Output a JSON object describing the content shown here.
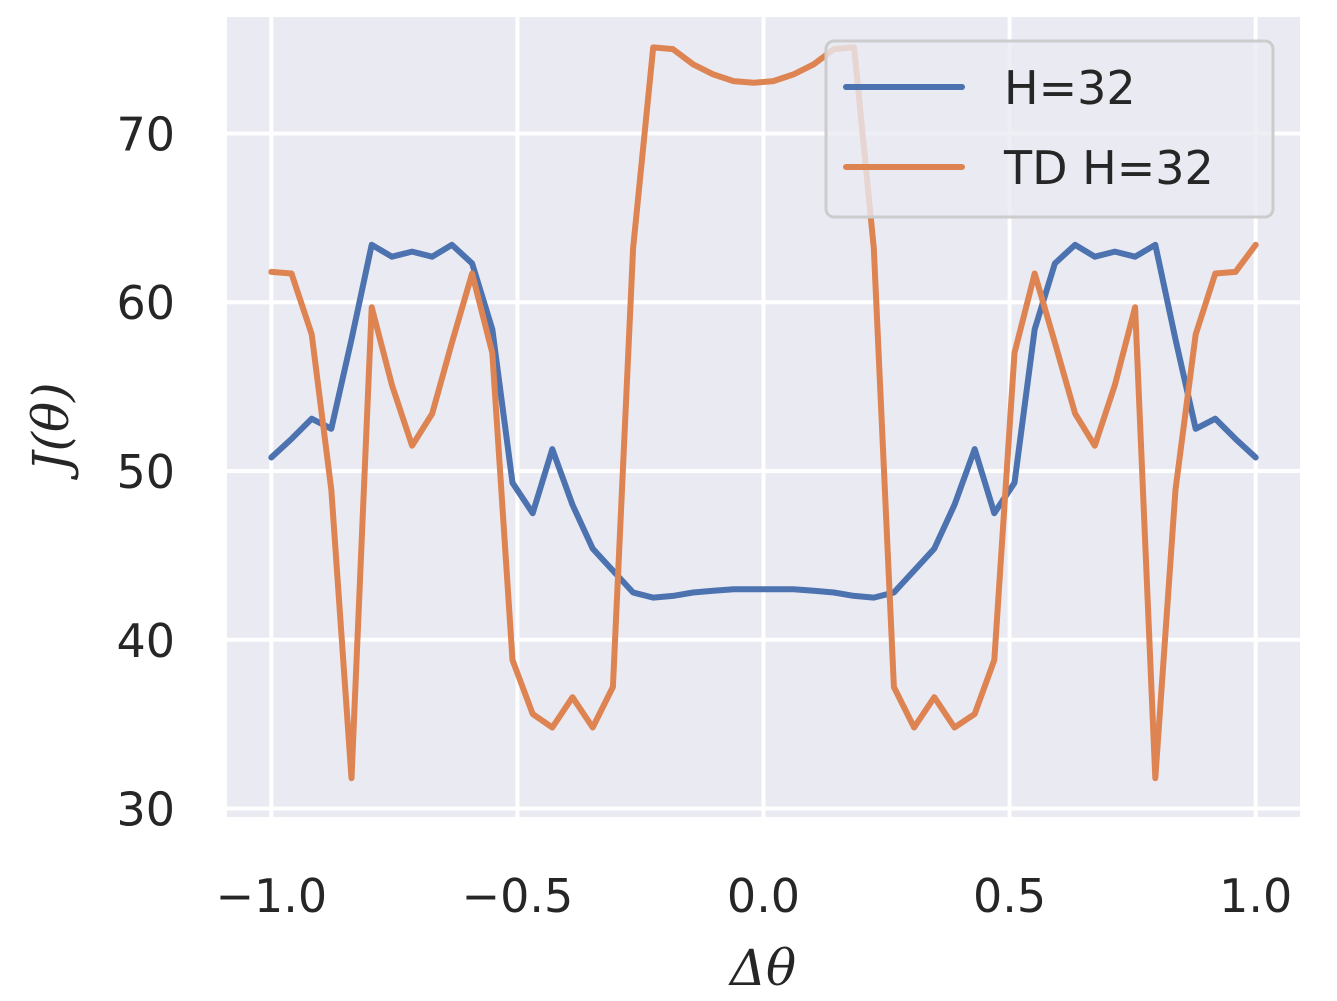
{
  "chart_data": {
    "type": "line",
    "xlabel": "Δθ",
    "ylabel": "J(θ)",
    "xlim": [
      -1.09,
      1.09
    ],
    "ylim": [
      29.5,
      76.9
    ],
    "xticks": [
      -1.0,
      -0.5,
      0.0,
      0.5,
      1.0
    ],
    "xtick_labels": [
      "−1.0",
      "−0.5",
      "0.0",
      "0.5",
      "1.0"
    ],
    "yticks": [
      30,
      40,
      50,
      60,
      70
    ],
    "ytick_labels": [
      "30",
      "40",
      "50",
      "60",
      "70"
    ],
    "grid": true,
    "background": "#eaeaf2",
    "legend_position": "top-right",
    "x": [
      -1.0,
      -0.959,
      -0.918,
      -0.878,
      -0.837,
      -0.796,
      -0.755,
      -0.714,
      -0.673,
      -0.633,
      -0.592,
      -0.551,
      -0.51,
      -0.469,
      -0.429,
      -0.388,
      -0.347,
      -0.306,
      -0.265,
      -0.224,
      -0.184,
      -0.143,
      -0.102,
      -0.061,
      -0.02,
      0.02,
      0.061,
      0.102,
      0.143,
      0.184,
      0.224,
      0.265,
      0.306,
      0.347,
      0.388,
      0.429,
      0.469,
      0.51,
      0.551,
      0.592,
      0.633,
      0.673,
      0.714,
      0.755,
      0.796,
      0.837,
      0.878,
      0.918,
      0.959,
      1.0
    ],
    "series": [
      {
        "name": "H=32",
        "color": "#4c72b0",
        "values": [
          50.8,
          51.9,
          53.1,
          52.5,
          57.8,
          63.4,
          62.7,
          63.0,
          62.7,
          63.4,
          62.3,
          58.4,
          49.3,
          47.5,
          51.3,
          48.0,
          45.4,
          44.1,
          42.8,
          42.5,
          42.6,
          42.8,
          42.9,
          43.0,
          43.0,
          43.0,
          43.0,
          42.9,
          42.8,
          42.6,
          42.5,
          42.8,
          44.1,
          45.4,
          48.0,
          51.3,
          47.5,
          49.3,
          58.4,
          62.3,
          63.4,
          62.7,
          63.0,
          62.7,
          63.4,
          57.8,
          52.5,
          53.1,
          51.9,
          50.8
        ]
      },
      {
        "name": "TD H=32",
        "color": "#dd8452",
        "values": [
          61.8,
          61.7,
          58.1,
          48.9,
          31.8,
          59.7,
          55.1,
          51.5,
          53.4,
          57.6,
          61.7,
          57.0,
          38.8,
          35.6,
          34.8,
          36.6,
          34.8,
          37.2,
          63.2,
          75.1,
          75.0,
          74.1,
          73.5,
          73.1,
          73.0,
          73.1,
          73.5,
          74.1,
          75.0,
          75.1,
          63.2,
          37.2,
          34.8,
          36.6,
          34.8,
          35.6,
          38.8,
          57.0,
          61.7,
          57.6,
          53.4,
          51.5,
          55.1,
          59.7,
          31.8,
          48.9,
          58.1,
          61.7,
          61.8,
          63.4
        ]
      }
    ]
  }
}
